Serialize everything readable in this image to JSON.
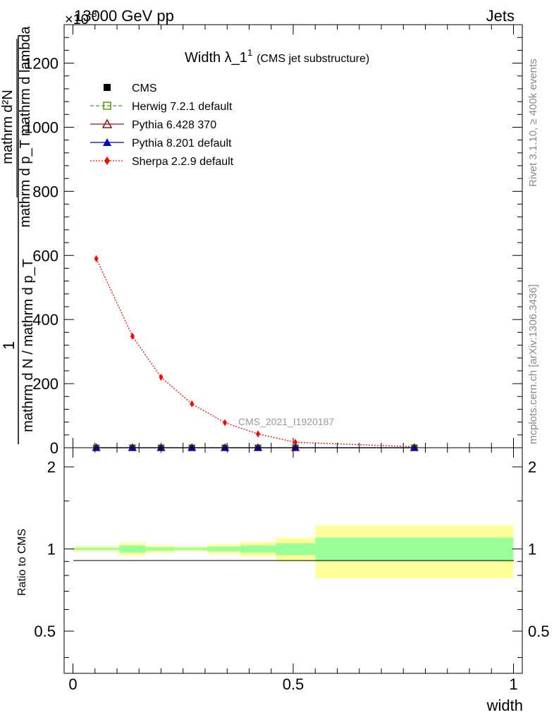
{
  "header": {
    "left": "13000 GeV pp",
    "right": "Jets",
    "exponent_base": "×10",
    "exponent_power": "-3"
  },
  "title": {
    "main": "Width λ_1",
    "superscript": "1",
    "sub": "(CMS jet substructure)"
  },
  "side_labels": {
    "rivet": "Rivet 3.1.10, ≥ 400k events",
    "mcplots": "mcplots.cern.ch [arXiv:1306.3436]"
  },
  "watermark": "CMS_2021_I1920187",
  "y_axis": {
    "label_numerator_prefix": "1",
    "label_numerator": "mathrm d²N",
    "label_numerator_sub": "mathrm d p_T mathrm d lambda",
    "label_denominator": "mathrm d N / mathrm d p_T"
  },
  "ratio_axis_label": "Ratio to CMS",
  "x_axis_label": "width",
  "legend": [
    {
      "label": "CMS",
      "marker": "filled-square",
      "color": "#000000"
    },
    {
      "label": "Herwig 7.2.1 default",
      "marker": "open-square",
      "color": "#4a9a1a"
    },
    {
      "label": "Pythia 6.428 370",
      "marker": "open-triangle",
      "color": "#8b1a1a"
    },
    {
      "label": "Pythia 8.201 default",
      "marker": "filled-triangle",
      "color": "#0000cc"
    },
    {
      "label": "Sherpa 2.2.9 default",
      "marker": "filled-diamond",
      "color": "#ff0000"
    }
  ],
  "chart_data": [
    {
      "type": "line",
      "panel": "main",
      "x": [
        0.053,
        0.135,
        0.2,
        0.27,
        0.345,
        0.42,
        0.505,
        0.775
      ],
      "series": [
        {
          "name": "Sherpa 2.2.9 default",
          "color": "#ff0000",
          "marker": "filled-diamond",
          "line": "dotted",
          "values": [
            590,
            348,
            220,
            137,
            78,
            43,
            17,
            3
          ]
        },
        {
          "name": "CMS",
          "color": "#000000",
          "marker": "filled-square",
          "line": "none",
          "values": [
            0,
            0,
            0,
            0,
            0,
            0,
            0,
            0
          ]
        },
        {
          "name": "Herwig 7.2.1 default",
          "color": "#4a9a1a",
          "marker": "open-square",
          "line": "dashed",
          "values": [
            0,
            0,
            0,
            0,
            0,
            0,
            0,
            0
          ]
        },
        {
          "name": "Pythia 6.428 370",
          "color": "#8b1a1a",
          "marker": "open-triangle",
          "line": "solid",
          "values": [
            0,
            0,
            0,
            0,
            0,
            0,
            0,
            0
          ]
        },
        {
          "name": "Pythia 8.201 default",
          "color": "#0000cc",
          "marker": "filled-triangle",
          "line": "solid",
          "values": [
            0,
            0,
            0,
            0,
            0,
            0,
            0,
            0
          ]
        }
      ],
      "xlim": [
        -0.02,
        1.02
      ],
      "ylim": [
        0,
        1320
      ],
      "yticks": [
        0,
        200,
        400,
        600,
        800,
        1000,
        1200
      ],
      "ytick_labels": [
        "0",
        "200",
        "400",
        "600",
        "800",
        "1000",
        "1200"
      ]
    },
    {
      "type": "area",
      "panel": "ratio",
      "xlabel": "width",
      "ylabel": "Ratio to CMS",
      "xlim": [
        -0.02,
        1.02
      ],
      "ylim": [
        0.35,
        2.35
      ],
      "yticks": [
        0.5,
        1,
        2
      ],
      "ytick_labels": [
        "0.5",
        "1",
        "2"
      ],
      "xticks": [
        0,
        0.5,
        1
      ],
      "xtick_labels": [
        "0",
        "0.5",
        "1"
      ],
      "bins": [
        {
          "x0": 0.0,
          "x1": 0.105,
          "inner": [
            0.99,
            1.01
          ],
          "outer": [
            0.98,
            1.02
          ]
        },
        {
          "x0": 0.105,
          "x1": 0.165,
          "inner": [
            0.97,
            1.03
          ],
          "outer": [
            0.945,
            1.055
          ]
        },
        {
          "x0": 0.165,
          "x1": 0.23,
          "inner": [
            0.985,
            1.015
          ],
          "outer": [
            0.97,
            1.03
          ]
        },
        {
          "x0": 0.23,
          "x1": 0.305,
          "inner": [
            0.99,
            1.01
          ],
          "outer": [
            0.98,
            1.02
          ]
        },
        {
          "x0": 0.305,
          "x1": 0.38,
          "inner": [
            0.98,
            1.02
          ],
          "outer": [
            0.96,
            1.04
          ]
        },
        {
          "x0": 0.38,
          "x1": 0.46,
          "inner": [
            0.97,
            1.03
          ],
          "outer": [
            0.94,
            1.06
          ]
        },
        {
          "x0": 0.46,
          "x1": 0.55,
          "inner": [
            0.95,
            1.05
          ],
          "outer": [
            0.9,
            1.1
          ]
        },
        {
          "x0": 0.55,
          "x1": 1.0,
          "inner": [
            0.9,
            1.1
          ],
          "outer": [
            0.78,
            1.22
          ]
        }
      ],
      "inner_color": "#99ff99",
      "outer_color": "#ffff99"
    }
  ]
}
